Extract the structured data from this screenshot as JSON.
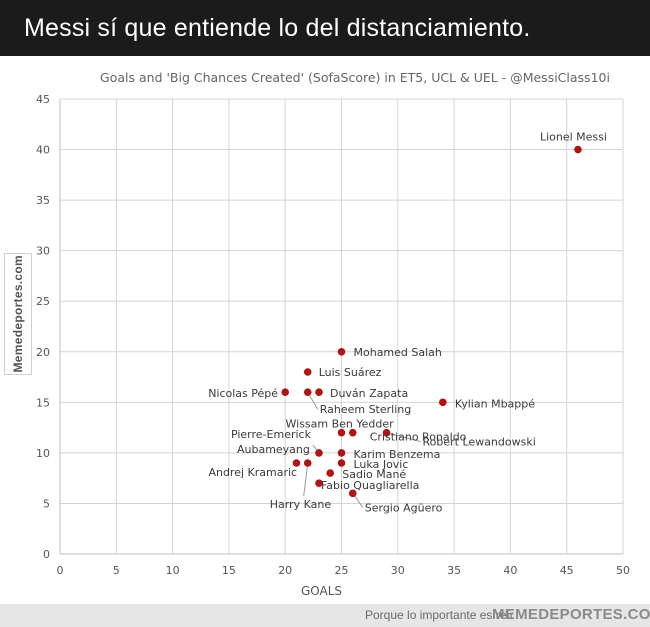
{
  "header": {
    "title": "Messi sí que entiende lo del distanciamiento."
  },
  "chart_data": {
    "type": "scatter",
    "title": "Goals and 'Big Chances  Created' (SofaScore)  in ET5, UCL & UEL - @MessiClass10i",
    "xlabel": "GOALS",
    "ylabel": "",
    "xlim": [
      0,
      50
    ],
    "ylim": [
      0,
      45
    ],
    "xticks": [
      0,
      5,
      10,
      15,
      20,
      25,
      30,
      35,
      40,
      45,
      50
    ],
    "yticks": [
      0,
      5,
      10,
      15,
      20,
      25,
      30,
      35,
      40,
      45
    ],
    "grid": true,
    "marker_color": "#b01515",
    "points": [
      {
        "label": "Lionel Messi",
        "x": 46,
        "y": 40
      },
      {
        "label": "Mohamed Salah",
        "x": 25,
        "y": 20
      },
      {
        "label": "Luis Suárez",
        "x": 22,
        "y": 18
      },
      {
        "label": "Nicolas Pépé",
        "x": 20,
        "y": 16
      },
      {
        "label": "Duván Zapata",
        "x": 23,
        "y": 16
      },
      {
        "label": "Raheem Sterling",
        "x": 22,
        "y": 16
      },
      {
        "label": "Kylian Mbappé",
        "x": 34,
        "y": 15
      },
      {
        "label": "Wissam Ben Yedder",
        "x": 25,
        "y": 12
      },
      {
        "label": "Cristiano Ronaldo",
        "x": 26,
        "y": 12
      },
      {
        "label": "Robert Lewandowski",
        "x": 29,
        "y": 12
      },
      {
        "label": "Pierre-Emerick\nAubameyang",
        "x": 23,
        "y": 10
      },
      {
        "label": "Karim Benzema",
        "x": 25,
        "y": 10
      },
      {
        "label": "Luka Jovic",
        "x": 25,
        "y": 9
      },
      {
        "label": "Andrej Kramaric",
        "x": 21,
        "y": 9
      },
      {
        "label": "Harry Kane",
        "x": 22,
        "y": 9
      },
      {
        "label": "Sadio Mané",
        "x": 24,
        "y": 8
      },
      {
        "label": "Fabio Quagliarella",
        "x": 23,
        "y": 7
      },
      {
        "label": "Sergio Agüero",
        "x": 26,
        "y": 6
      }
    ]
  },
  "watermark": {
    "side_text": "Memedeportes.com"
  },
  "footer": {
    "slogan": "Porque lo importante es reír",
    "brand": "MEMEDEPORTES.COM"
  }
}
